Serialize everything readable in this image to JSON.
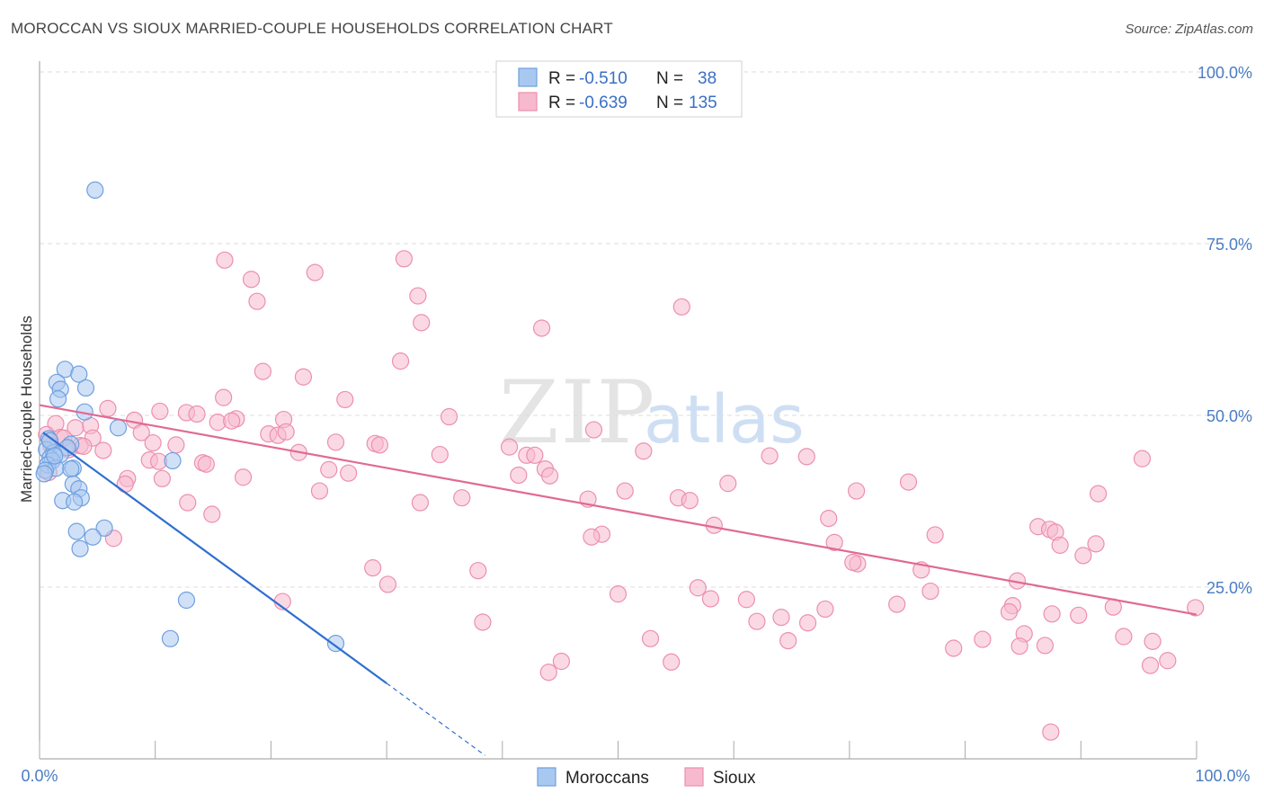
{
  "title": "MOROCCAN VS SIOUX MARRIED-COUPLE HOUSEHOLDS CORRELATION CHART",
  "source": "Source: ZipAtlas.com",
  "watermark": {
    "zip": "ZIP",
    "atlas": "atlas"
  },
  "colors": {
    "moroccans_fill": "#a9c8f0",
    "moroccans_stroke": "#6e9fe0",
    "moroccans_line": "#2f6fd0",
    "sioux_fill": "#f7b9cd",
    "sioux_stroke": "#ec8fae",
    "sioux_line": "#e06a93",
    "grid": "#dddddd",
    "axis_text": "#4a7cc4"
  },
  "legend_top": [
    {
      "r_label": "R =",
      "r_value": "-0.510",
      "n_label": "N =",
      "n_value": "38"
    },
    {
      "r_label": "R =",
      "r_value": "-0.639",
      "n_label": "N =",
      "n_value": "135"
    }
  ],
  "legend_bottom": [
    "Moroccans",
    "Sioux"
  ],
  "chart_data": {
    "type": "scatter",
    "title": "MOROCCAN VS SIOUX MARRIED-COUPLE HOUSEHOLDS CORRELATION CHART",
    "xlabel": "",
    "ylabel": "Married-couple Households",
    "xlim": [
      0,
      100
    ],
    "ylim": [
      0,
      105
    ],
    "x_tick_labels": [
      "0.0%",
      "100.0%"
    ],
    "y_ticks": [
      25,
      50,
      75,
      100
    ],
    "y_tick_labels": [
      "25.0%",
      "50.0%",
      "75.0%",
      "100.0%"
    ],
    "grid": true,
    "series": [
      {
        "name": "Moroccans",
        "r": -0.51,
        "n": 38,
        "trend": {
          "x0": 0.3,
          "y0": 47.5,
          "x1": 30,
          "y1": 11,
          "dash_to_x": 38.5,
          "dash_to_y": 0.5
        },
        "points": [
          [
            4.8,
            82.8
          ],
          [
            2.2,
            56.7
          ],
          [
            3.4,
            56
          ],
          [
            1.5,
            54.8
          ],
          [
            4,
            54
          ],
          [
            1.8,
            53.8
          ],
          [
            1.6,
            52.4
          ],
          [
            3.9,
            50.5
          ],
          [
            6.8,
            48.2
          ],
          [
            0.8,
            46.6
          ],
          [
            2.7,
            45.8
          ],
          [
            2.4,
            45.3
          ],
          [
            0.6,
            45
          ],
          [
            1.2,
            44.6
          ],
          [
            1.8,
            44.3
          ],
          [
            0.9,
            43.8
          ],
          [
            1.1,
            43.4
          ],
          [
            11.5,
            43.4
          ],
          [
            0.7,
            42.8
          ],
          [
            1.4,
            42.3
          ],
          [
            2.9,
            42.3
          ],
          [
            2.7,
            42.2
          ],
          [
            0.5,
            42
          ],
          [
            0.4,
            41.5
          ],
          [
            2.9,
            40
          ],
          [
            3.4,
            39.3
          ],
          [
            3.6,
            38
          ],
          [
            2,
            37.6
          ],
          [
            3,
            37.4
          ],
          [
            5.6,
            33.6
          ],
          [
            3.2,
            33.1
          ],
          [
            4.6,
            32.3
          ],
          [
            3.5,
            30.6
          ],
          [
            12.7,
            23.1
          ],
          [
            11.3,
            17.5
          ],
          [
            25.6,
            16.8
          ],
          [
            0.9,
            46.3
          ],
          [
            1.3,
            44.1
          ]
        ]
      },
      {
        "name": "Sioux",
        "r": -0.639,
        "n": 135,
        "trend": {
          "x0": 0,
          "y0": 51.5,
          "x1": 100,
          "y1": 21
        },
        "points": [
          [
            16,
            72.6
          ],
          [
            31.5,
            72.8
          ],
          [
            18.3,
            69.8
          ],
          [
            23.8,
            70.8
          ],
          [
            18.8,
            66.6
          ],
          [
            32.7,
            67.4
          ],
          [
            55.5,
            65.8
          ],
          [
            33,
            63.5
          ],
          [
            43.4,
            62.7
          ],
          [
            31.2,
            57.9
          ],
          [
            19.3,
            56.4
          ],
          [
            22.8,
            55.6
          ],
          [
            15.9,
            52.6
          ],
          [
            26.4,
            52.3
          ],
          [
            5.9,
            51
          ],
          [
            10.4,
            50.6
          ],
          [
            12.7,
            50.4
          ],
          [
            13.6,
            50.2
          ],
          [
            21.1,
            49.4
          ],
          [
            35.4,
            49.8
          ],
          [
            8.2,
            49.3
          ],
          [
            17,
            49.5
          ],
          [
            15.4,
            49
          ],
          [
            1.4,
            48.8
          ],
          [
            4.4,
            48.5
          ],
          [
            16.6,
            49.2
          ],
          [
            47.9,
            47.9
          ],
          [
            8.8,
            47.5
          ],
          [
            19.8,
            47.3
          ],
          [
            20.6,
            47.1
          ],
          [
            21.3,
            47.6
          ],
          [
            1.8,
            46.8
          ],
          [
            4.6,
            46.7
          ],
          [
            9.8,
            46
          ],
          [
            25.6,
            46.1
          ],
          [
            29,
            45.9
          ],
          [
            29.4,
            45.7
          ],
          [
            40.6,
            45.4
          ],
          [
            11.8,
            45.7
          ],
          [
            3.5,
            45.6
          ],
          [
            3.8,
            45.5
          ],
          [
            1,
            45.6
          ],
          [
            2.5,
            45
          ],
          [
            5.5,
            44.9
          ],
          [
            22.4,
            44.6
          ],
          [
            34.6,
            44.3
          ],
          [
            42.1,
            44.2
          ],
          [
            42.8,
            44.2
          ],
          [
            52.2,
            44.8
          ],
          [
            63.1,
            44.1
          ],
          [
            66.3,
            44
          ],
          [
            95.3,
            43.7
          ],
          [
            9.5,
            43.5
          ],
          [
            14.1,
            43.1
          ],
          [
            14.4,
            42.9
          ],
          [
            10.3,
            43.3
          ],
          [
            25,
            42.1
          ],
          [
            26.7,
            41.6
          ],
          [
            43.7,
            42.2
          ],
          [
            41.4,
            41.3
          ],
          [
            44.1,
            41.2
          ],
          [
            17.6,
            41
          ],
          [
            7.6,
            40.8
          ],
          [
            10.6,
            40.8
          ],
          [
            7.4,
            40
          ],
          [
            59.5,
            40.1
          ],
          [
            75.1,
            40.3
          ],
          [
            0.8,
            41.7
          ],
          [
            24.2,
            39
          ],
          [
            50.6,
            39
          ],
          [
            70.6,
            39
          ],
          [
            91.5,
            38.6
          ],
          [
            36.5,
            38
          ],
          [
            47.4,
            37.8
          ],
          [
            55.2,
            38
          ],
          [
            56.2,
            37.6
          ],
          [
            32.9,
            37.3
          ],
          [
            12.8,
            37.3
          ],
          [
            14.9,
            35.6
          ],
          [
            68.2,
            35
          ],
          [
            58.3,
            34
          ],
          [
            86.3,
            33.8
          ],
          [
            87.3,
            33.4
          ],
          [
            87.8,
            33
          ],
          [
            48.6,
            32.7
          ],
          [
            47.7,
            32.3
          ],
          [
            77.4,
            32.6
          ],
          [
            68.7,
            31.5
          ],
          [
            91.3,
            31.3
          ],
          [
            6.4,
            32.1
          ],
          [
            88.2,
            31.1
          ],
          [
            90.2,
            29.6
          ],
          [
            28.8,
            27.8
          ],
          [
            37.9,
            27.4
          ],
          [
            76.2,
            27.5
          ],
          [
            70.7,
            28.4
          ],
          [
            70.3,
            28.6
          ],
          [
            30.1,
            25.4
          ],
          [
            56.9,
            24.9
          ],
          [
            84.5,
            25.9
          ],
          [
            50,
            24
          ],
          [
            77,
            24.4
          ],
          [
            61.1,
            23.2
          ],
          [
            58,
            23.3
          ],
          [
            21,
            22.9
          ],
          [
            74.1,
            22.5
          ],
          [
            67.9,
            21.8
          ],
          [
            84.1,
            22.3
          ],
          [
            83.8,
            21.4
          ],
          [
            87.5,
            21.1
          ],
          [
            92.8,
            22.1
          ],
          [
            99.9,
            22
          ],
          [
            89.8,
            20.9
          ],
          [
            62,
            20
          ],
          [
            64.1,
            20.6
          ],
          [
            66.4,
            19.8
          ],
          [
            38.3,
            19.9
          ],
          [
            85.1,
            18.2
          ],
          [
            81.5,
            17.4
          ],
          [
            84.7,
            16.4
          ],
          [
            93.7,
            17.8
          ],
          [
            52.8,
            17.5
          ],
          [
            96.2,
            17.1
          ],
          [
            64.7,
            17.2
          ],
          [
            79,
            16.1
          ],
          [
            86.9,
            16.5
          ],
          [
            54.6,
            14.1
          ],
          [
            45.1,
            14.2
          ],
          [
            44,
            12.6
          ],
          [
            96,
            13.6
          ],
          [
            97.5,
            14.3
          ],
          [
            87.4,
            3.9
          ],
          [
            0.6,
            47.2
          ],
          [
            2.1,
            46.7
          ],
          [
            3.1,
            48.2
          ]
        ]
      }
    ]
  }
}
